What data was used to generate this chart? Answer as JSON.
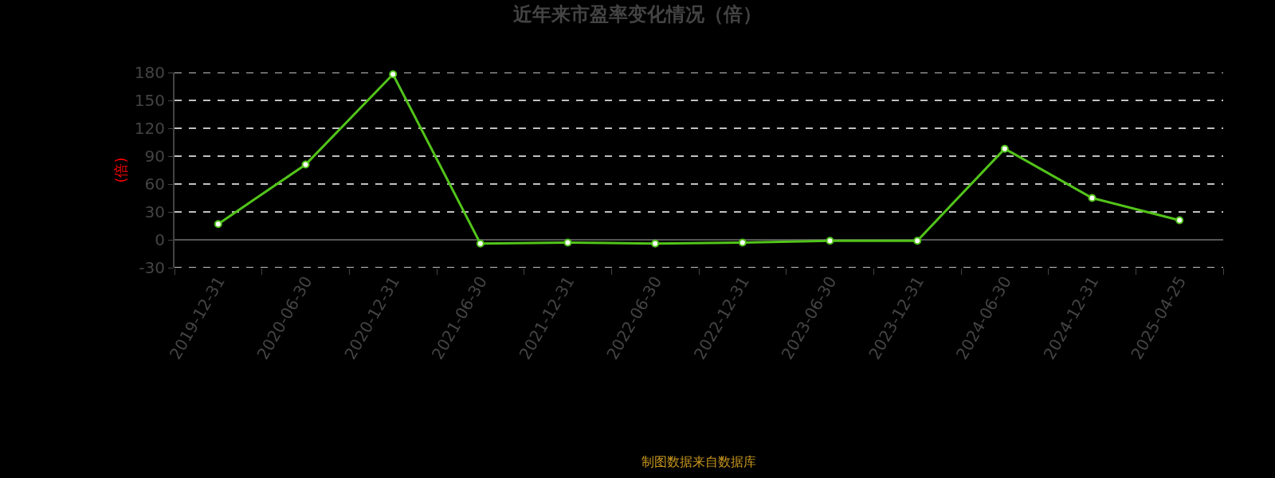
{
  "chart_data": {
    "type": "line",
    "title": "近年来市盈率变化情况（倍）",
    "ylabel": "(倍)",
    "categories": [
      "2019-12-31",
      "2020-06-30",
      "2020-12-31",
      "2021-06-30",
      "2021-12-31",
      "2022-06-30",
      "2022-12-31",
      "2023-06-30",
      "2023-12-31",
      "2024-06-30",
      "2024-12-31",
      "2025-04-25"
    ],
    "series": [
      {
        "color": "#52c41a",
        "values": [
          17,
          81,
          178,
          -4,
          -3,
          -4,
          -3,
          -1,
          -1,
          98,
          45,
          21
        ]
      }
    ],
    "ylim": [
      -30,
      180
    ],
    "yticks": [
      -30,
      0,
      30,
      60,
      90,
      120,
      150,
      180
    ],
    "grid": "y",
    "marker": "circle",
    "line_style": "solid",
    "annotations": [
      "制图数据来自数据库"
    ]
  }
}
